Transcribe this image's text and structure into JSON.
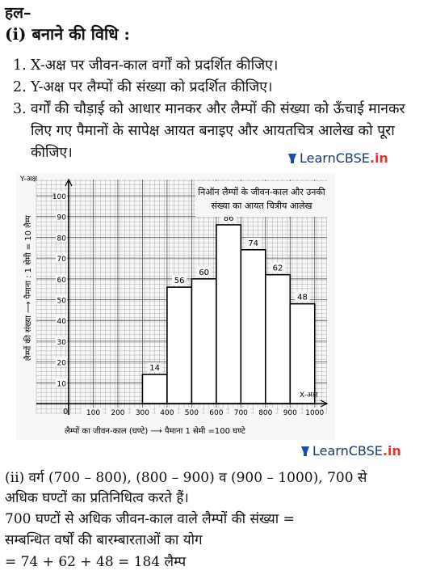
{
  "heading": "हल–",
  "subheading": "(i) बनाने की विधि :",
  "steps": [
    {
      "num": "1.",
      "text": "X-अक्ष पर जीवन-काल वर्गों को प्रदर्शित कीजिए।"
    },
    {
      "num": "2.",
      "text": "Y-अक्ष पर लैम्पों की संख्या को प्रदर्शित कीजिए।"
    },
    {
      "num": "3.",
      "text": "वर्गों की चौड़ाई को आधार मानकर और लैम्पों की संख्या को ऊँचाई मानकर लिए गए पैमानों के सापेक्ष आयत बनाइए और आयतचित्र आलेख को पूरा कीजिए।"
    }
  ],
  "brand": {
    "name": "LearnCBSE",
    "suffix": ".in",
    "lamp_color": "#1f4e9c",
    "suffix_color": "#e3342f"
  },
  "chart_data": {
    "type": "bar",
    "title_lines": [
      "निऑन लैम्पों के जीवन-काल और उनकी",
      "संख्या का आयत चित्रीय आलेख"
    ],
    "categories": [
      "300-400",
      "400-500",
      "500-600",
      "600-700",
      "700-800",
      "800-900",
      "900-1000"
    ],
    "bins": [
      [
        300,
        400
      ],
      [
        400,
        500
      ],
      [
        500,
        600
      ],
      [
        600,
        700
      ],
      [
        700,
        800
      ],
      [
        800,
        900
      ],
      [
        900,
        1000
      ]
    ],
    "values": [
      14,
      56,
      60,
      86,
      74,
      62,
      48
    ],
    "x_ticks": [
      100,
      200,
      300,
      400,
      500,
      600,
      700,
      800,
      900,
      1000
    ],
    "y_ticks": [
      10,
      20,
      30,
      40,
      50,
      60,
      70,
      80,
      90,
      100
    ],
    "xlim": [
      0,
      1050
    ],
    "ylim": [
      0,
      100
    ],
    "y_axis_end": "Y-अक्ष",
    "x_axis_end": "X-अक्ष",
    "x_origin_label": "0",
    "xlabel": "लैम्पों का जीवन-काल (घण्टे) ⟶ पैमाना 1 सेमी =100 घण्टे",
    "ylabel": "लैम्पों की संख्या ⟶ पैमाना : 1 सेमी = 10 लैम्प",
    "grid": true,
    "bar_fill": "#ffffff",
    "grid_color": "#9a9a9a"
  },
  "conclusion": [
    "(ii) वर्ग (700 – 800), (800 – 900) व (900 – 1000), 700 से",
    "अधिक घण्टों का प्रतिनिधित्व करते हैं।",
    "700 घण्टों से अधिक जीवन-काल वाले लैम्पों की संख्या =",
    "सम्बन्धित वर्षों की बारम्बारताओं का योग",
    "= 74 + 62 + 48 = 184 लैम्प"
  ]
}
